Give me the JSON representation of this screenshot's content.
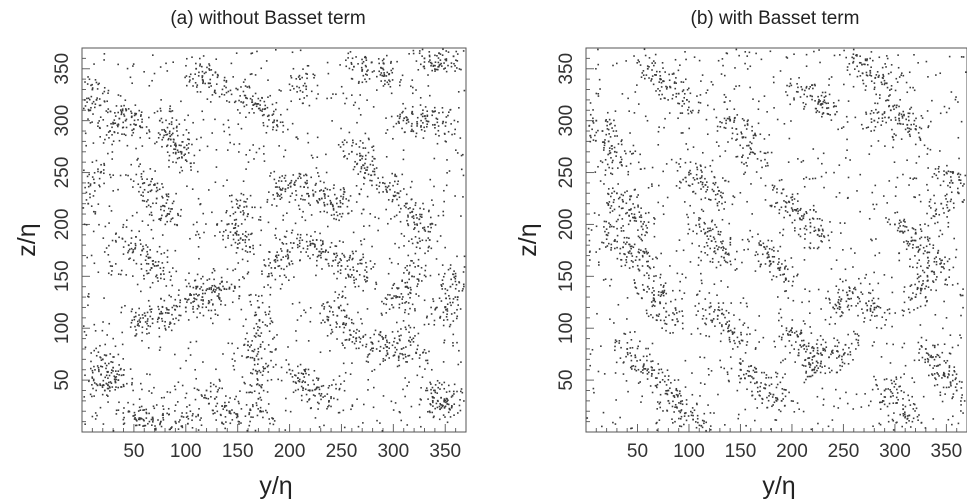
{
  "chart_data": [
    {
      "type": "scatter",
      "title": "(a) without Basset term",
      "xlabel": "y/η",
      "ylabel": "z/η",
      "xlim": [
        0,
        370
      ],
      "ylim": [
        0,
        370
      ],
      "xticks": [
        50,
        100,
        150,
        200,
        250,
        300,
        350
      ],
      "yticks": [
        50,
        100,
        150,
        200,
        250,
        300,
        350
      ],
      "grid": false,
      "legend": "none",
      "point_color": "#3a3a3a",
      "points": [
        [
          30,
          297
        ],
        [
          36,
          302
        ],
        [
          42,
          300
        ],
        [
          48,
          304
        ],
        [
          52,
          296
        ],
        [
          27,
          290
        ],
        [
          61,
          112
        ],
        [
          68,
          109
        ],
        [
          75,
          114
        ],
        [
          82,
          118
        ],
        [
          56,
          106
        ],
        [
          262,
          352
        ],
        [
          270,
          349
        ],
        [
          279,
          356
        ],
        [
          288,
          351
        ],
        [
          296,
          345
        ],
        [
          305,
          299
        ],
        [
          314,
          301
        ],
        [
          323,
          297
        ],
        [
          331,
          302
        ],
        [
          340,
          296
        ],
        [
          348,
          299
        ],
        [
          188,
          230
        ],
        [
          196,
          234
        ],
        [
          205,
          238
        ],
        [
          214,
          236
        ],
        [
          223,
          229
        ],
        [
          231,
          225
        ],
        [
          240,
          221
        ],
        [
          249,
          217
        ],
        [
          257,
          223
        ],
        [
          170,
          120
        ],
        [
          171,
          108
        ],
        [
          168,
          95
        ],
        [
          172,
          82
        ],
        [
          170,
          70
        ],
        [
          169,
          58
        ],
        [
          171,
          45
        ],
        [
          170,
          32
        ],
        [
          172,
          20
        ],
        [
          100,
          120
        ],
        [
          105,
          132
        ],
        [
          110,
          140
        ],
        [
          116,
          130
        ],
        [
          122,
          124
        ],
        [
          128,
          135
        ],
        [
          135,
          145
        ],
        [
          142,
          138
        ],
        [
          280,
          85
        ],
        [
          287,
          78
        ],
        [
          294,
          82
        ],
        [
          301,
          74
        ],
        [
          308,
          80
        ],
        [
          315,
          88
        ],
        [
          322,
          76
        ],
        [
          340,
          40
        ],
        [
          346,
          33
        ],
        [
          352,
          27
        ],
        [
          357,
          35
        ],
        [
          345,
          22
        ],
        [
          338,
          30
        ],
        [
          20,
          70
        ],
        [
          25,
          58
        ],
        [
          30,
          62
        ],
        [
          35,
          50
        ],
        [
          40,
          55
        ],
        [
          15,
          45
        ],
        [
          22,
          40
        ],
        [
          75,
          300
        ],
        [
          80,
          290
        ],
        [
          85,
          285
        ],
        [
          90,
          278
        ],
        [
          95,
          270
        ],
        [
          100,
          262
        ],
        [
          150,
          330
        ],
        [
          158,
          322
        ],
        [
          165,
          315
        ],
        [
          172,
          310
        ],
        [
          180,
          305
        ],
        [
          188,
          300
        ],
        [
          220,
          180
        ],
        [
          228,
          170
        ],
        [
          235,
          175
        ],
        [
          242,
          165
        ],
        [
          250,
          160
        ],
        [
          258,
          168
        ],
        [
          265,
          155
        ],
        [
          272,
          150
        ],
        [
          305,
          230
        ],
        [
          312,
          220
        ],
        [
          318,
          212
        ],
        [
          325,
          205
        ],
        [
          330,
          195
        ],
        [
          335,
          185
        ],
        [
          45,
          180
        ],
        [
          52,
          188
        ],
        [
          58,
          175
        ],
        [
          64,
          168
        ],
        [
          70,
          160
        ],
        [
          76,
          152
        ],
        [
          200,
          60
        ],
        [
          208,
          52
        ],
        [
          215,
          48
        ],
        [
          222,
          40
        ],
        [
          230,
          35
        ],
        [
          238,
          30
        ],
        [
          120,
          40
        ],
        [
          128,
          32
        ],
        [
          135,
          25
        ],
        [
          142,
          20
        ],
        [
          150,
          15
        ],
        [
          90,
          10
        ],
        [
          96,
          15
        ],
        [
          102,
          8
        ],
        [
          330,
          360
        ],
        [
          337,
          355
        ],
        [
          344,
          365
        ],
        [
          351,
          358
        ],
        [
          358,
          362
        ],
        [
          260,
          270
        ],
        [
          268,
          262
        ],
        [
          275,
          255
        ],
        [
          282,
          248
        ],
        [
          290,
          240
        ],
        [
          140,
          200
        ],
        [
          148,
          192
        ],
        [
          155,
          185
        ],
        [
          162,
          178
        ],
        [
          160,
          210
        ],
        [
          152,
          218
        ],
        [
          60,
          240
        ],
        [
          66,
          232
        ],
        [
          72,
          225
        ],
        [
          78,
          218
        ],
        [
          84,
          210
        ],
        [
          360,
          150
        ],
        [
          355,
          140
        ],
        [
          362,
          130
        ],
        [
          350,
          120
        ],
        [
          345,
          110
        ],
        [
          10,
          330
        ],
        [
          14,
          320
        ],
        [
          8,
          310
        ],
        [
          18,
          250
        ],
        [
          12,
          240
        ],
        [
          6,
          220
        ],
        [
          240,
          120
        ],
        [
          246,
          112
        ],
        [
          252,
          105
        ],
        [
          258,
          98
        ],
        [
          264,
          90
        ],
        [
          300,
          120
        ],
        [
          306,
          130
        ],
        [
          312,
          140
        ],
        [
          318,
          150
        ],
        [
          324,
          160
        ],
        [
          110,
          350
        ],
        [
          116,
          343
        ],
        [
          122,
          336
        ],
        [
          128,
          329
        ],
        [
          210,
          340
        ],
        [
          216,
          333
        ],
        [
          180,
          150
        ],
        [
          186,
          158
        ],
        [
          192,
          166
        ],
        [
          198,
          174
        ],
        [
          204,
          182
        ],
        [
          45,
          20
        ],
        [
          52,
          12
        ],
        [
          60,
          6
        ],
        [
          68,
          14
        ],
        [
          76,
          10
        ]
      ]
    },
    {
      "type": "scatter",
      "title": "(b) with Basset term",
      "xlabel": "y/η",
      "ylabel": "z/η",
      "xlim": [
        0,
        370
      ],
      "ylim": [
        0,
        370
      ],
      "xticks": [
        50,
        100,
        150,
        200,
        250,
        300,
        350
      ],
      "yticks": [
        50,
        100,
        150,
        200,
        250,
        300,
        350
      ],
      "grid": false,
      "legend": "none",
      "point_color": "#3a3a3a",
      "points": [
        [
          60,
          350
        ],
        [
          68,
          344
        ],
        [
          75,
          338
        ],
        [
          82,
          332
        ],
        [
          90,
          326
        ],
        [
          98,
          320
        ],
        [
          190,
          230
        ],
        [
          197,
          222
        ],
        [
          204,
          214
        ],
        [
          211,
          206
        ],
        [
          218,
          198
        ],
        [
          225,
          190
        ],
        [
          20,
          190
        ],
        [
          28,
          184
        ],
        [
          36,
          178
        ],
        [
          44,
          172
        ],
        [
          52,
          166
        ],
        [
          60,
          160
        ],
        [
          280,
          300
        ],
        [
          288,
          306
        ],
        [
          296,
          310
        ],
        [
          304,
          302
        ],
        [
          312,
          296
        ],
        [
          320,
          292
        ],
        [
          150,
          60
        ],
        [
          158,
          54
        ],
        [
          166,
          48
        ],
        [
          174,
          42
        ],
        [
          182,
          36
        ],
        [
          190,
          30
        ],
        [
          240,
          120
        ],
        [
          248,
          128
        ],
        [
          256,
          136
        ],
        [
          264,
          130
        ],
        [
          272,
          124
        ],
        [
          280,
          118
        ],
        [
          330,
          80
        ],
        [
          336,
          72
        ],
        [
          342,
          64
        ],
        [
          348,
          56
        ],
        [
          354,
          48
        ],
        [
          360,
          40
        ],
        [
          100,
          250
        ],
        [
          108,
          244
        ],
        [
          116,
          238
        ],
        [
          124,
          232
        ],
        [
          132,
          226
        ],
        [
          210,
          330
        ],
        [
          218,
          324
        ],
        [
          226,
          318
        ],
        [
          234,
          312
        ],
        [
          242,
          306
        ],
        [
          40,
          80
        ],
        [
          48,
          72
        ],
        [
          56,
          64
        ],
        [
          64,
          56
        ],
        [
          72,
          48
        ],
        [
          80,
          40
        ],
        [
          300,
          200
        ],
        [
          308,
          192
        ],
        [
          316,
          184
        ],
        [
          324,
          176
        ],
        [
          332,
          168
        ],
        [
          120,
          120
        ],
        [
          128,
          112
        ],
        [
          136,
          104
        ],
        [
          144,
          96
        ],
        [
          152,
          88
        ],
        [
          10,
          300
        ],
        [
          16,
          290
        ],
        [
          22,
          280
        ],
        [
          28,
          270
        ],
        [
          34,
          260
        ],
        [
          350,
          250
        ],
        [
          356,
          240
        ],
        [
          362,
          230
        ],
        [
          345,
          220
        ],
        [
          340,
          210
        ],
        [
          80,
          30
        ],
        [
          88,
          24
        ],
        [
          96,
          18
        ],
        [
          104,
          12
        ],
        [
          112,
          6
        ],
        [
          260,
          360
        ],
        [
          268,
          354
        ],
        [
          276,
          348
        ],
        [
          284,
          342
        ],
        [
          292,
          336
        ],
        [
          170,
          180
        ],
        [
          176,
          172
        ],
        [
          182,
          164
        ],
        [
          188,
          156
        ],
        [
          194,
          148
        ],
        [
          60,
          140
        ],
        [
          66,
          132
        ],
        [
          72,
          124
        ],
        [
          78,
          116
        ],
        [
          84,
          108
        ],
        [
          220,
          60
        ],
        [
          228,
          66
        ],
        [
          236,
          72
        ],
        [
          244,
          78
        ],
        [
          252,
          84
        ],
        [
          140,
          300
        ],
        [
          146,
          292
        ],
        [
          152,
          284
        ],
        [
          158,
          276
        ],
        [
          164,
          268
        ],
        [
          320,
          130
        ],
        [
          326,
          138
        ],
        [
          332,
          146
        ],
        [
          338,
          154
        ],
        [
          344,
          162
        ],
        [
          30,
          230
        ],
        [
          36,
          222
        ],
        [
          42,
          214
        ],
        [
          48,
          206
        ],
        [
          54,
          198
        ],
        [
          200,
          100
        ],
        [
          206,
          92
        ],
        [
          212,
          84
        ],
        [
          218,
          76
        ],
        [
          224,
          68
        ],
        [
          110,
          200
        ],
        [
          116,
          192
        ],
        [
          122,
          184
        ],
        [
          128,
          176
        ],
        [
          134,
          168
        ],
        [
          290,
          40
        ],
        [
          296,
          34
        ],
        [
          302,
          28
        ],
        [
          308,
          22
        ],
        [
          314,
          16
        ]
      ]
    }
  ]
}
